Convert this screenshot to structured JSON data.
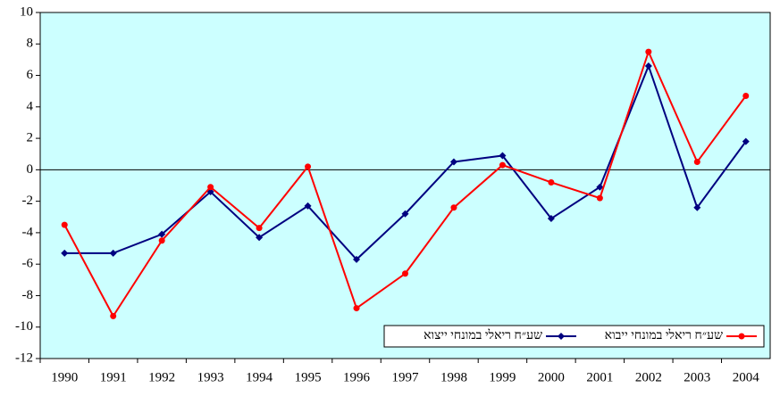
{
  "chart_data": {
    "type": "line",
    "categories": [
      "1990",
      "1991",
      "1992",
      "1993",
      "1994",
      "1995",
      "1996",
      "1997",
      "1998",
      "1999",
      "2000",
      "2001",
      "2002",
      "2003",
      "2004"
    ],
    "series": [
      {
        "name": "שע״ח ריאלי במונחי ייצוא",
        "color": "#000080",
        "marker": "diamond",
        "values": [
          -5.3,
          -5.3,
          -4.1,
          -1.4,
          -4.3,
          -2.3,
          -5.7,
          -2.8,
          0.5,
          0.9,
          -3.1,
          -1.1,
          6.6,
          -2.4,
          1.8
        ]
      },
      {
        "name": "שע״ח ריאלי במונחי ייבוא",
        "color": "#ff0000",
        "marker": "circle",
        "values": [
          -3.5,
          -9.3,
          -4.5,
          -1.1,
          -3.7,
          0.2,
          -8.8,
          -6.6,
          -2.4,
          0.3,
          -0.8,
          -1.8,
          7.5,
          0.5,
          4.7
        ]
      }
    ],
    "ylim": [
      -12,
      10
    ],
    "yticks": [
      -12,
      -10,
      -8,
      -6,
      -4,
      -2,
      0,
      2,
      4,
      6,
      8,
      10
    ],
    "background": "#ccffff",
    "legend": "bottom-right"
  }
}
